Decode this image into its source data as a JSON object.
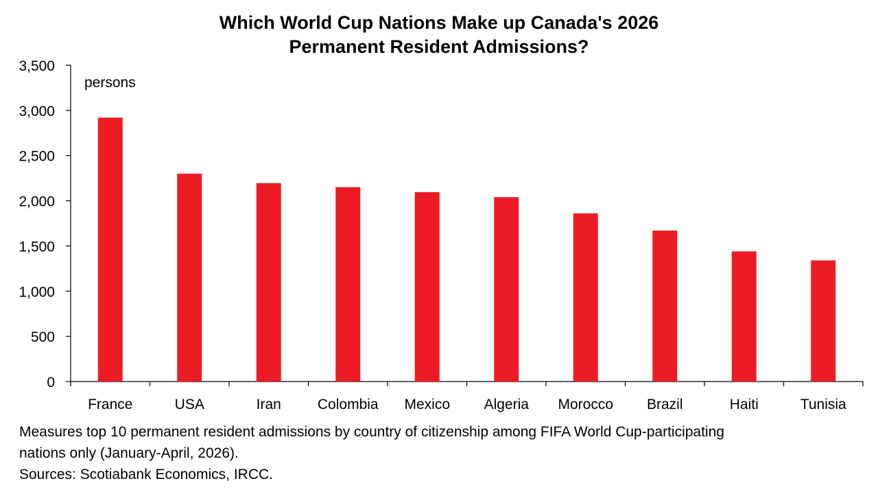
{
  "chart_data": {
    "type": "bar",
    "title_lines": [
      "Which World Cup Nations Make up Canada's 2026",
      "Permanent Resident Admissions?"
    ],
    "unit_label": "persons",
    "categories": [
      "France",
      "USA",
      "Iran",
      "Colombia",
      "Mexico",
      "Algeria",
      "Morocco",
      "Brazil",
      "Haiti",
      "Tunisia"
    ],
    "values": [
      2920,
      2300,
      2195,
      2150,
      2095,
      2040,
      1860,
      1670,
      1440,
      1340
    ],
    "ylim": [
      0,
      3500
    ],
    "yticks": [
      0,
      500,
      1000,
      1500,
      2000,
      2500,
      3000,
      3500
    ],
    "ytick_labels": [
      "0",
      "500",
      "1,000",
      "1,500",
      "2,000",
      "2,500",
      "3,000",
      "3,500"
    ],
    "bar_color": "#ed1c24",
    "grid": false,
    "legend": false
  },
  "notes": {
    "description_line1": "Measures top 10 permanent resident admissions by country of citizenship among FIFA World Cup-participating",
    "description_line2": "nations only (January-April, 2026).",
    "sources": "Sources: Scotiabank Economics, IRCC."
  }
}
